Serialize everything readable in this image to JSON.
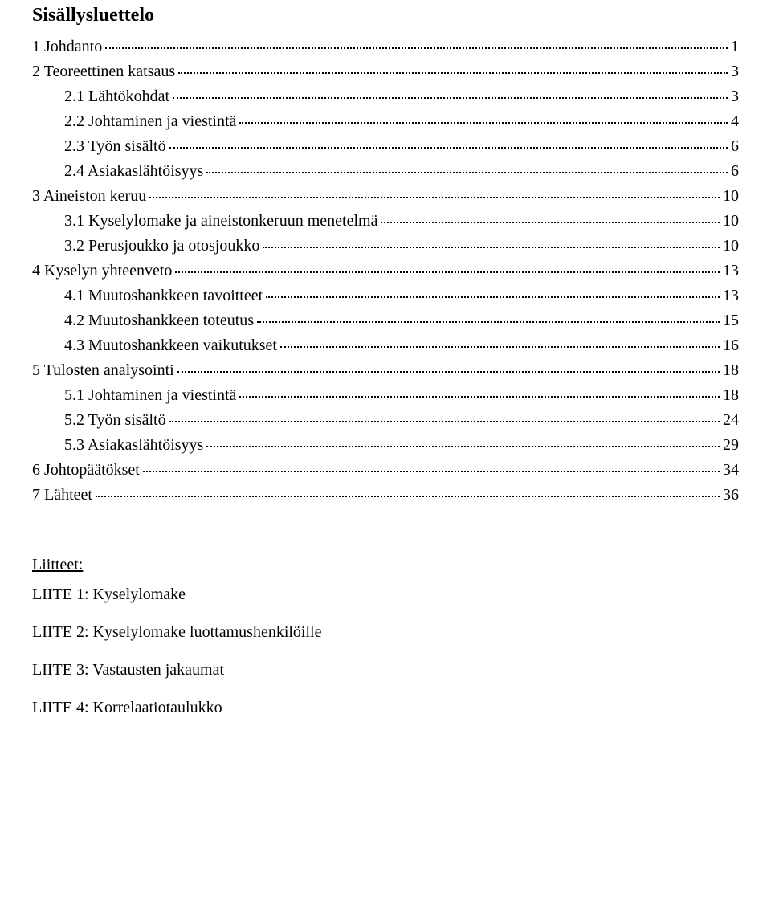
{
  "doc": {
    "title": "Sisällysluettelo",
    "title_fontsize": 24,
    "body_fontsize": 20,
    "text_color": "#000000",
    "background_color": "#ffffff",
    "toc": [
      {
        "indent": 0,
        "label": "1 Johdanto",
        "page": "1"
      },
      {
        "indent": 0,
        "label": "2 Teoreettinen katsaus",
        "page": "3"
      },
      {
        "indent": 1,
        "label": "2.1 Lähtökohdat",
        "page": "3"
      },
      {
        "indent": 1,
        "label": "2.2 Johtaminen ja viestintä",
        "page": "4"
      },
      {
        "indent": 1,
        "label": "2.3 Työn sisältö",
        "page": "6"
      },
      {
        "indent": 1,
        "label": "2.4 Asiakaslähtöisyys",
        "page": "6"
      },
      {
        "indent": 0,
        "label": "3 Aineiston keruu",
        "page": "10"
      },
      {
        "indent": 1,
        "label": "3.1 Kyselylomake ja aineistonkeruun menetelmä",
        "page": "10"
      },
      {
        "indent": 1,
        "label": "3.2 Perusjoukko ja otosjoukko",
        "page": "10"
      },
      {
        "indent": 0,
        "label": "4 Kyselyn yhteenveto",
        "page": "13"
      },
      {
        "indent": 1,
        "label": "4.1 Muutoshankkeen tavoitteet",
        "page": "13"
      },
      {
        "indent": 1,
        "label": "4.2 Muutoshankkeen toteutus",
        "page": "15"
      },
      {
        "indent": 1,
        "label": "4.3 Muutoshankkeen vaikutukset",
        "page": "16"
      },
      {
        "indent": 0,
        "label": "5 Tulosten analysointi",
        "page": "18"
      },
      {
        "indent": 1,
        "label": "5.1 Johtaminen ja viestintä",
        "page": "18"
      },
      {
        "indent": 1,
        "label": "5.2 Työn sisältö",
        "page": "24"
      },
      {
        "indent": 1,
        "label": "5.3 Asiakaslähtöisyys",
        "page": "29"
      },
      {
        "indent": 0,
        "label": "6 Johtopäätökset",
        "page": "34"
      },
      {
        "indent": 0,
        "label": "7 Lähteet",
        "page": "36"
      }
    ],
    "attachments_heading": "Liitteet:",
    "attachments": [
      "LIITE 1: Kyselylomake",
      "LIITE 2: Kyselylomake luottamushenkilöille",
      "LIITE 3: Vastausten jakaumat",
      "LIITE 4: Korrelaatiotaulukko"
    ]
  }
}
